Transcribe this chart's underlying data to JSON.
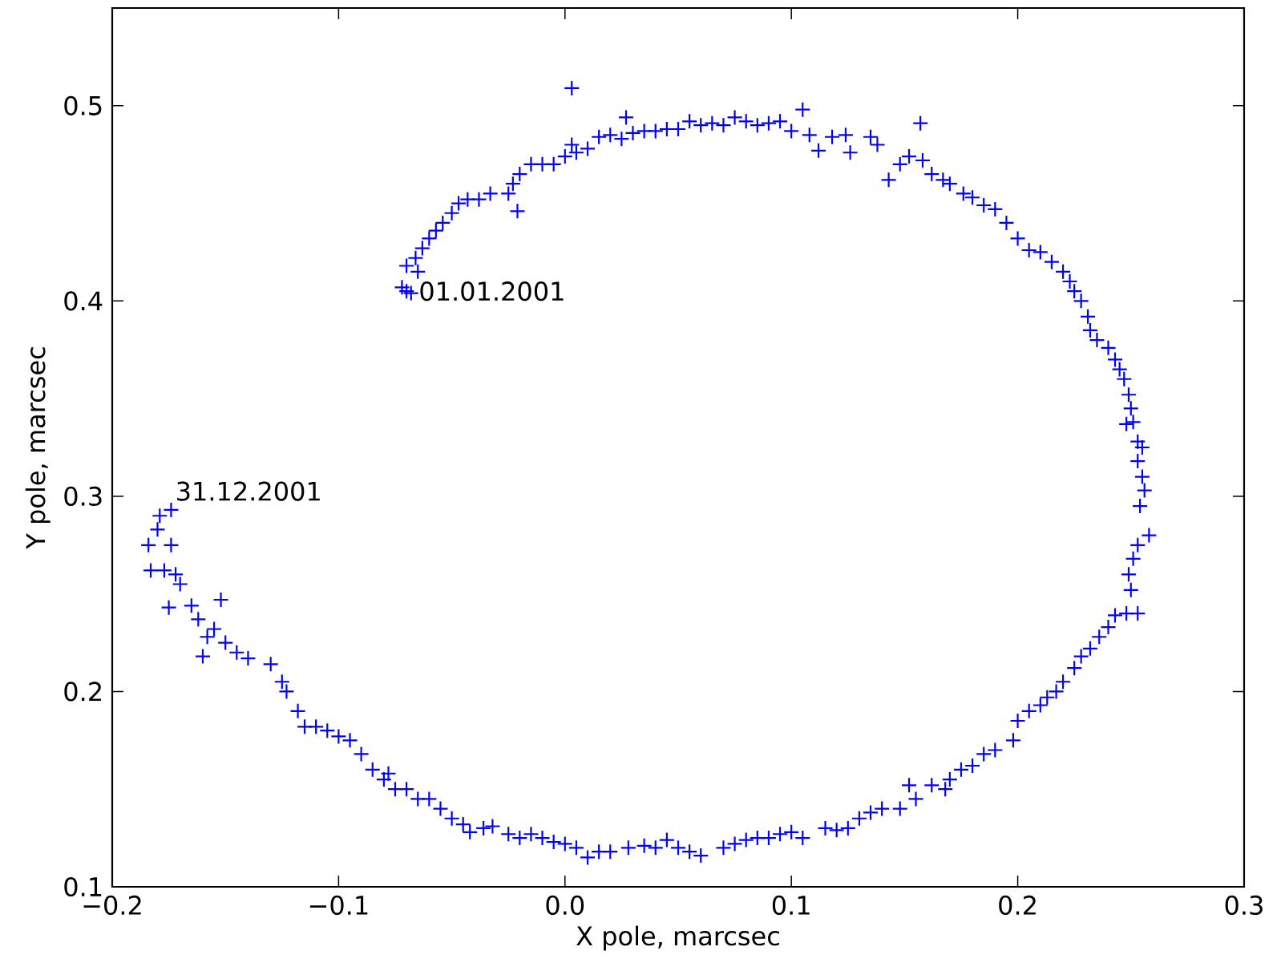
{
  "chart_data": {
    "type": "scatter",
    "xlabel": "X pole, marcsec",
    "ylabel": "Y pole, marcsec",
    "xlim": [
      -0.2,
      0.3
    ],
    "ylim": [
      0.1,
      0.55
    ],
    "xticks": [
      {
        "value": -0.2,
        "label": "−0.2"
      },
      {
        "value": -0.1,
        "label": "−0.1"
      },
      {
        "value": 0.0,
        "label": "0.0"
      },
      {
        "value": 0.1,
        "label": "0.1"
      },
      {
        "value": 0.2,
        "label": "0.2"
      },
      {
        "value": 0.3,
        "label": "0.3"
      }
    ],
    "yticks": [
      0.1,
      0.2,
      0.3,
      0.4,
      0.5
    ],
    "marker": "cross",
    "grid": false,
    "legend": false,
    "annotations": [
      {
        "text": "01.01.2001",
        "x": -0.07,
        "y": 0.405
      },
      {
        "text": "31.12.2001",
        "x": -0.174,
        "y": 0.293
      }
    ],
    "series": [
      {
        "color": "#0000ff",
        "x": [
          -0.07,
          -0.072,
          -0.068,
          -0.065,
          -0.07,
          -0.066,
          -0.063,
          -0.06,
          -0.057,
          -0.054,
          -0.05,
          -0.047,
          -0.043,
          -0.038,
          -0.033,
          -0.025,
          -0.023,
          -0.021,
          -0.02,
          -0.015,
          -0.01,
          -0.005,
          0.0,
          0.003,
          0.005,
          0.01,
          0.015,
          0.02,
          0.025,
          0.027,
          0.03,
          0.035,
          0.04,
          0.045,
          0.05,
          0.055,
          0.06,
          0.065,
          0.07,
          0.075,
          0.08,
          0.085,
          0.09,
          0.095,
          0.1,
          0.105,
          0.108,
          0.112,
          0.118,
          0.124,
          0.126,
          0.135,
          0.138,
          0.143,
          0.148,
          0.152,
          0.157,
          0.158,
          0.162,
          0.167,
          0.17,
          0.176,
          0.18,
          0.185,
          0.19,
          0.195,
          0.2,
          0.205,
          0.21,
          0.215,
          0.22,
          0.223,
          0.225,
          0.228,
          0.231,
          0.232,
          0.235,
          0.24,
          0.243,
          0.245,
          0.247,
          0.249,
          0.25,
          0.251,
          0.248,
          0.253,
          0.255,
          0.253,
          0.255,
          0.256,
          0.254,
          0.258,
          0.253,
          0.251,
          0.249,
          0.25,
          0.253,
          0.248,
          0.243,
          0.24,
          0.236,
          0.232,
          0.228,
          0.225,
          0.22,
          0.217,
          0.213,
          0.21,
          0.205,
          0.2,
          0.198,
          0.19,
          0.185,
          0.18,
          0.175,
          0.17,
          0.168,
          0.162,
          0.155,
          0.152,
          0.148,
          0.14,
          0.135,
          0.13,
          0.125,
          0.12,
          0.115,
          0.105,
          0.1,
          0.095,
          0.09,
          0.085,
          0.08,
          0.075,
          0.07,
          0.06,
          0.055,
          0.05,
          0.045,
          0.04,
          0.035,
          0.028,
          0.02,
          0.015,
          0.01,
          0.005,
          0.0,
          -0.005,
          -0.01,
          -0.015,
          -0.02,
          -0.025,
          -0.032,
          -0.036,
          -0.042,
          -0.045,
          -0.05,
          -0.055,
          -0.06,
          -0.065,
          -0.07,
          -0.075,
          -0.078,
          -0.08,
          -0.085,
          -0.09,
          -0.095,
          -0.1,
          -0.105,
          -0.11,
          -0.115,
          -0.118,
          -0.123,
          -0.125,
          -0.13,
          -0.14,
          -0.145,
          -0.15,
          -0.155,
          -0.158,
          -0.16,
          -0.152,
          -0.162,
          -0.165,
          -0.17,
          -0.172,
          -0.175,
          -0.177,
          -0.183,
          -0.184,
          -0.174,
          -0.18,
          -0.179,
          -0.174,
          0.003
        ],
        "values": [
          0.405,
          0.407,
          0.404,
          0.415,
          0.418,
          0.422,
          0.427,
          0.432,
          0.436,
          0.44,
          0.445,
          0.45,
          0.452,
          0.452,
          0.455,
          0.455,
          0.46,
          0.446,
          0.465,
          0.47,
          0.47,
          0.47,
          0.474,
          0.48,
          0.476,
          0.478,
          0.484,
          0.485,
          0.483,
          0.494,
          0.486,
          0.487,
          0.487,
          0.488,
          0.488,
          0.492,
          0.49,
          0.491,
          0.49,
          0.494,
          0.492,
          0.49,
          0.491,
          0.492,
          0.487,
          0.498,
          0.485,
          0.477,
          0.484,
          0.485,
          0.476,
          0.484,
          0.48,
          0.462,
          0.47,
          0.474,
          0.491,
          0.472,
          0.465,
          0.462,
          0.46,
          0.455,
          0.453,
          0.449,
          0.447,
          0.44,
          0.432,
          0.426,
          0.425,
          0.42,
          0.415,
          0.41,
          0.405,
          0.4,
          0.392,
          0.385,
          0.38,
          0.376,
          0.37,
          0.365,
          0.36,
          0.352,
          0.345,
          0.338,
          0.337,
          0.328,
          0.325,
          0.318,
          0.31,
          0.303,
          0.295,
          0.28,
          0.275,
          0.268,
          0.26,
          0.252,
          0.24,
          0.24,
          0.239,
          0.233,
          0.228,
          0.222,
          0.218,
          0.212,
          0.205,
          0.2,
          0.197,
          0.193,
          0.19,
          0.185,
          0.175,
          0.17,
          0.168,
          0.162,
          0.16,
          0.155,
          0.15,
          0.152,
          0.145,
          0.152,
          0.14,
          0.14,
          0.138,
          0.135,
          0.13,
          0.129,
          0.13,
          0.125,
          0.128,
          0.127,
          0.125,
          0.125,
          0.124,
          0.122,
          0.12,
          0.116,
          0.118,
          0.12,
          0.124,
          0.12,
          0.121,
          0.12,
          0.118,
          0.118,
          0.115,
          0.12,
          0.122,
          0.123,
          0.125,
          0.127,
          0.125,
          0.127,
          0.131,
          0.13,
          0.128,
          0.132,
          0.135,
          0.14,
          0.145,
          0.145,
          0.15,
          0.15,
          0.158,
          0.155,
          0.16,
          0.168,
          0.175,
          0.177,
          0.18,
          0.182,
          0.182,
          0.19,
          0.2,
          0.205,
          0.214,
          0.217,
          0.22,
          0.225,
          0.232,
          0.228,
          0.218,
          0.247,
          0.237,
          0.244,
          0.255,
          0.26,
          0.243,
          0.262,
          0.262,
          0.275,
          0.275,
          0.283,
          0.29,
          0.293,
          0.509
        ]
      }
    ]
  }
}
